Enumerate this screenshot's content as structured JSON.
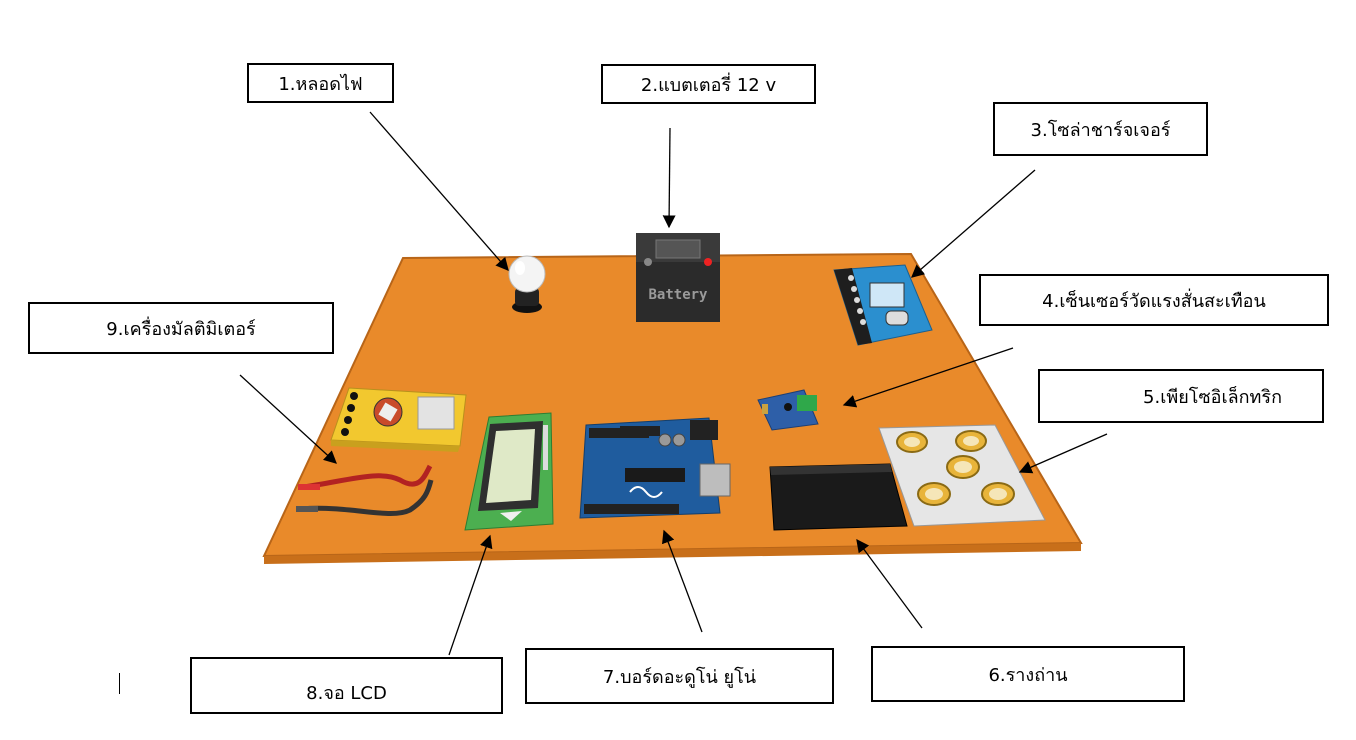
{
  "labels": {
    "bulb": "1.หลอดไฟ",
    "battery": "2.แบตเตอรี่ 12 v",
    "solar_charger": "3.โซล่าชาร์จเจอร์",
    "vibration_sensor": "4.เซ็นเซอร์วัดแรงสั่นสะเทือน",
    "piezo": "5.เพียโซอิเล็กทริก",
    "battery_holder": "6.รางถ่าน",
    "arduino": "7.บอร์ดอะดูโน่ ยูโน่",
    "lcd": "8.จอ LCD",
    "multimeter": "9.เครื่องมัลติมิเตอร์"
  },
  "component_text": {
    "battery_print": "Battery"
  },
  "colors": {
    "board": "#e98a2a",
    "board_edge": "#b86518",
    "battery_body": "#2b2b2b",
    "solar_charger": "#2b8fcf",
    "arduino": "#1f5c9e",
    "lcd_pcb": "#4caf50",
    "lcd_screen": "#dfe9c7",
    "multimeter": "#f2c82f",
    "piezo_plate": "#e6e6e6",
    "piezo_disc": "#e8b43a",
    "holder": "#1a1a1a"
  }
}
